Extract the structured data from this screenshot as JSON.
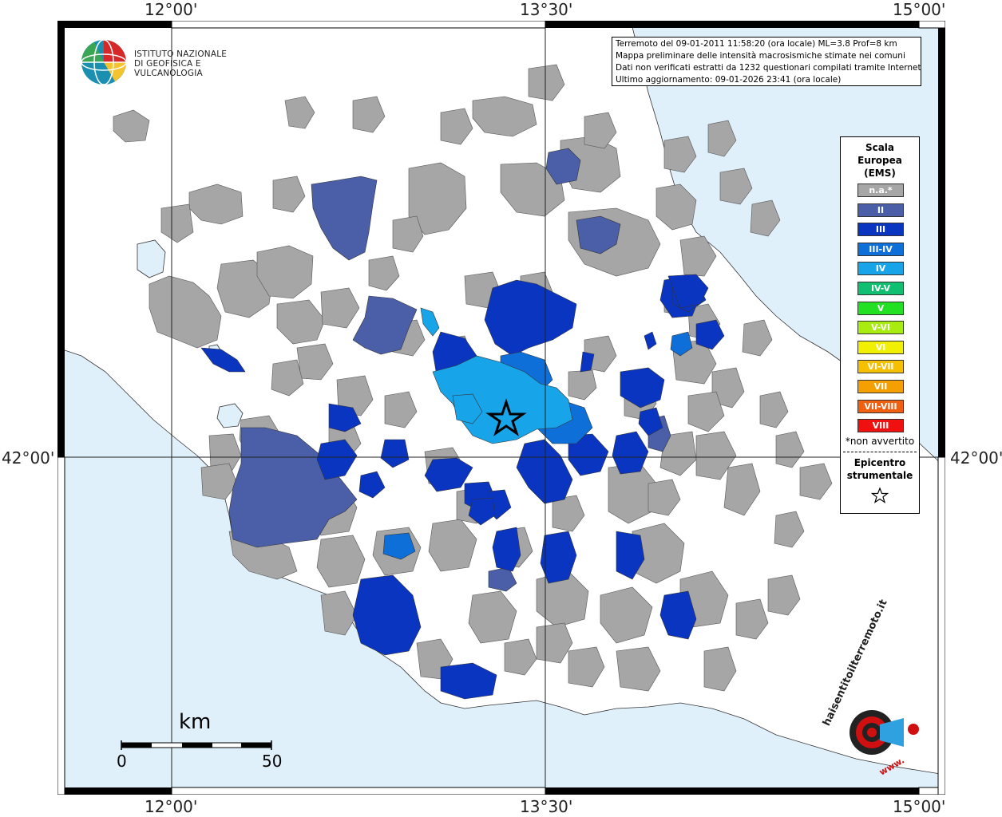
{
  "coordinates": {
    "lon_labels": [
      "12°00'",
      "13°30'",
      "15°00'"
    ],
    "lat_label": "42°00'"
  },
  "info": {
    "lines": [
      "Terremoto del 09-01-2011 11:58:20 (ora locale) ML=3.8 Prof=8 km",
      "Mappa preliminare delle intensità macrosismiche stimate nei comuni",
      "Dati non verificati estratti da 1232 questionari compilati tramite Internet.",
      "Ultimo aggiornamento: 09-01-2026 23:41 (ora locale)"
    ]
  },
  "logo": {
    "line1": "ISTITUTO NAZIONALE",
    "line2": "DI GEOFISICA E VULCANOLOGIA"
  },
  "legend": {
    "title_lines": [
      "Scala",
      "Europea",
      "(EMS)"
    ],
    "items": [
      {
        "label": "n.a.*",
        "color": "#a6a6a6"
      },
      {
        "label": "II",
        "color": "#4a5fa8"
      },
      {
        "label": "III",
        "color": "#0a35c0"
      },
      {
        "label": "III-IV",
        "color": "#0f6fd8"
      },
      {
        "label": "IV",
        "color": "#18a4e8"
      },
      {
        "label": "IV-V",
        "color": "#10c070"
      },
      {
        "label": "V",
        "color": "#22e022"
      },
      {
        "label": "V-VI",
        "color": "#a8ec10"
      },
      {
        "label": "VI",
        "color": "#f0f000"
      },
      {
        "label": "VI-VII",
        "color": "#f4c000"
      },
      {
        "label": "VII",
        "color": "#f4a000"
      },
      {
        "label": "VII-VIII",
        "color": "#f06010"
      },
      {
        "label": "VIII",
        "color": "#f01010"
      }
    ],
    "note": "*non avvertito",
    "epicentre_lines": [
      "Epicentro",
      "strumentale"
    ]
  },
  "scale_bar": {
    "unit": "km",
    "min": "0",
    "max": "50"
  },
  "hsi_logo": {
    "text": "haisentitoilterremoto.it",
    "prefix": "www."
  },
  "colors": {
    "sea": "#dff0fb",
    "land": "#ffffff",
    "gray": "#a6a6a6",
    "ii": "#4a5fa8",
    "iii": "#0a35c0",
    "iii_iv": "#0f6fd8",
    "iv": "#18a4e8"
  }
}
